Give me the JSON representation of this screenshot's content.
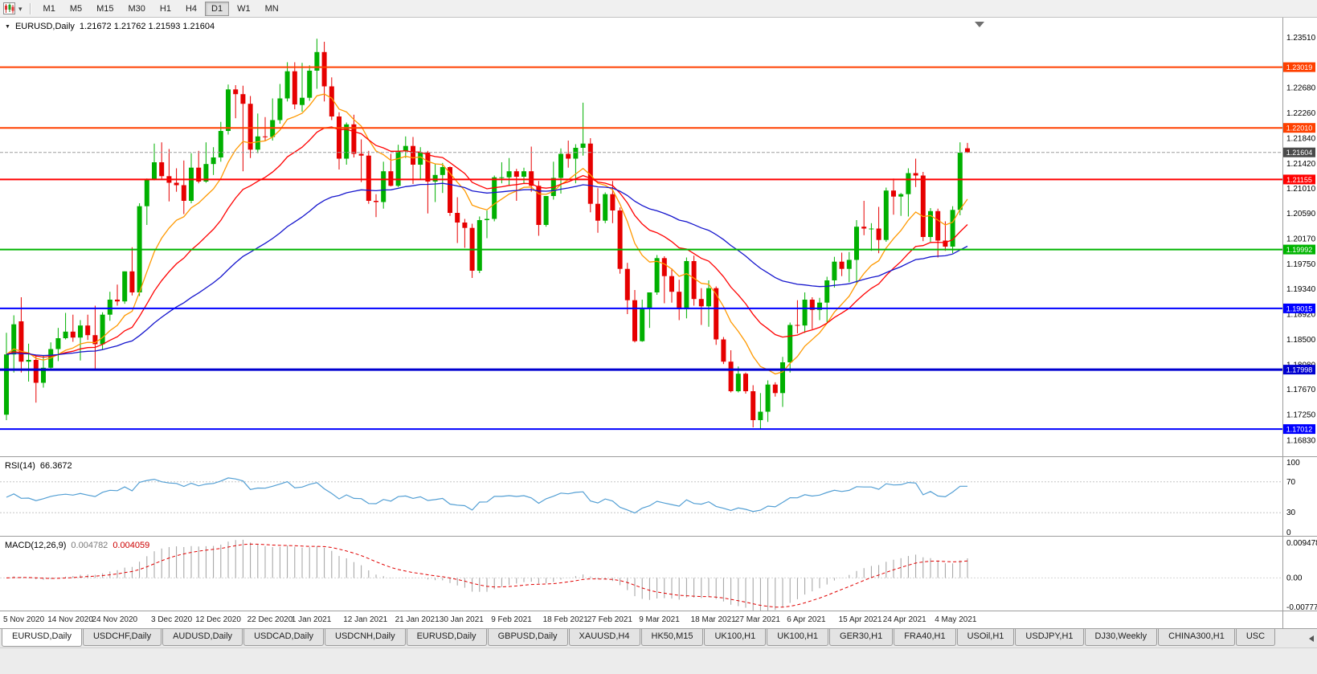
{
  "icons": {
    "symbol_dropdown": "▼",
    "toolbar_caret": "▾"
  },
  "toolbar": {
    "timeframes": [
      {
        "label": "M1",
        "active": false
      },
      {
        "label": "M5",
        "active": false
      },
      {
        "label": "M15",
        "active": false
      },
      {
        "label": "M30",
        "active": false
      },
      {
        "label": "H1",
        "active": false
      },
      {
        "label": "H4",
        "active": false
      },
      {
        "label": "D1",
        "active": true
      },
      {
        "label": "W1",
        "active": false
      },
      {
        "label": "MN",
        "active": false
      }
    ]
  },
  "chart": {
    "symbol_label": "EURUSD,Daily",
    "ohlc_label": "1.21672 1.21762 1.21593 1.21604",
    "rsi_name": "RSI(14)",
    "rsi_value": "66.3672",
    "macd_name": "MACD(12,26,9)",
    "macd_main": "0.004782",
    "macd_signal": "0.004059",
    "current_price": "1.21604"
  },
  "chart_data": {
    "type": "candlestick",
    "symbol": "EURUSD",
    "period": "Daily",
    "style": {
      "bull": "#00b000",
      "bear": "#e60000",
      "background": "#ffffff"
    },
    "price_axis": {
      "min": 1.1656,
      "max": 1.2384,
      "ticks": [
        "1.23510",
        "1.22680",
        "1.22260",
        "1.21840",
        "1.21420",
        "1.21010",
        "1.20590",
        "1.20170",
        "1.19750",
        "1.19340",
        "1.18920",
        "1.18500",
        "1.18080",
        "1.17670",
        "1.17250",
        "1.16830"
      ]
    },
    "x_axis": {
      "labels": [
        {
          "text": "5 Nov 2020",
          "index": 0
        },
        {
          "text": "14 Nov 2020",
          "index": 6
        },
        {
          "text": "24 Nov 2020",
          "index": 12
        },
        {
          "text": "3 Dec 2020",
          "index": 20
        },
        {
          "text": "12 Dec 2020",
          "index": 26
        },
        {
          "text": "22 Dec 2020",
          "index": 33
        },
        {
          "text": "1 Jan 2021",
          "index": 39
        },
        {
          "text": "12 Jan 2021",
          "index": 46
        },
        {
          "text": "21 Jan 2021",
          "index": 53
        },
        {
          "text": "30 Jan 2021",
          "index": 59
        },
        {
          "text": "9 Feb 2021",
          "index": 66
        },
        {
          "text": "18 Feb 2021",
          "index": 73
        },
        {
          "text": "27 Feb 2021",
          "index": 79
        },
        {
          "text": "9 Mar 2021",
          "index": 86
        },
        {
          "text": "18 Mar 2021",
          "index": 93
        },
        {
          "text": "27 Mar 2021",
          "index": 99
        },
        {
          "text": "6 Apr 2021",
          "index": 106
        },
        {
          "text": "15 Apr 2021",
          "index": 113
        },
        {
          "text": "24 Apr 2021",
          "index": 119
        },
        {
          "text": "4 May 2021",
          "index": 126
        }
      ]
    },
    "candles": [
      [
        1.1725,
        1.1861,
        1.1716,
        1.1825
      ],
      [
        1.1825,
        1.189,
        1.1795,
        1.1875
      ],
      [
        1.188,
        1.192,
        1.1795,
        1.1813
      ],
      [
        1.1813,
        1.1843,
        1.178,
        1.1816
      ],
      [
        1.1816,
        1.1823,
        1.1745,
        1.1778
      ],
      [
        1.1778,
        1.1823,
        1.177,
        1.1803
      ],
      [
        1.1803,
        1.1845,
        1.1799,
        1.1834
      ],
      [
        1.1834,
        1.1869,
        1.1814,
        1.1852
      ],
      [
        1.1852,
        1.1894,
        1.185,
        1.1863
      ],
      [
        1.1863,
        1.1891,
        1.1846,
        1.1853
      ],
      [
        1.1853,
        1.1882,
        1.1815,
        1.1873
      ],
      [
        1.1873,
        1.1891,
        1.1849,
        1.1857
      ],
      [
        1.1857,
        1.1906,
        1.18,
        1.1842
      ],
      [
        1.1842,
        1.1895,
        1.1833,
        1.1891
      ],
      [
        1.1891,
        1.1929,
        1.1881,
        1.1916
      ],
      [
        1.1916,
        1.1941,
        1.1906,
        1.1913
      ],
      [
        1.1913,
        1.1963,
        1.1909,
        1.1963
      ],
      [
        1.1963,
        1.2003,
        1.1923,
        1.1928
      ],
      [
        1.1928,
        1.2076,
        1.1922,
        1.2071
      ],
      [
        1.2071,
        1.2117,
        1.204,
        1.2115
      ],
      [
        1.2115,
        1.2175,
        1.2114,
        1.2144
      ],
      [
        1.2144,
        1.2177,
        1.2115,
        1.2121
      ],
      [
        1.2121,
        1.2166,
        1.2079,
        1.211
      ],
      [
        1.211,
        1.2134,
        1.2095,
        1.2106
      ],
      [
        1.2106,
        1.2147,
        1.2058,
        1.208
      ],
      [
        1.208,
        1.2159,
        1.2076,
        1.2135
      ],
      [
        1.2135,
        1.2163,
        1.2109,
        1.2112
      ],
      [
        1.2112,
        1.2177,
        1.211,
        1.2141
      ],
      [
        1.2141,
        1.2169,
        1.2123,
        1.2152
      ],
      [
        1.2152,
        1.2211,
        1.2145,
        1.2196
      ],
      [
        1.2196,
        1.2273,
        1.219,
        1.2265
      ],
      [
        1.2265,
        1.2272,
        1.2217,
        1.2257
      ],
      [
        1.2257,
        1.2271,
        1.2129,
        1.2241
      ],
      [
        1.2241,
        1.2254,
        1.2151,
        1.2165
      ],
      [
        1.2165,
        1.2225,
        1.2159,
        1.2187
      ],
      [
        1.2187,
        1.2219,
        1.218,
        1.2186
      ],
      [
        1.2186,
        1.225,
        1.218,
        1.2214
      ],
      [
        1.2214,
        1.2274,
        1.2208,
        1.225
      ],
      [
        1.225,
        1.231,
        1.2245,
        1.2295
      ],
      [
        1.2295,
        1.231,
        1.2232,
        1.224
      ],
      [
        1.2239,
        1.2309,
        1.2228,
        1.2251
      ],
      [
        1.2251,
        1.2305,
        1.2246,
        1.2296
      ],
      [
        1.2296,
        1.2349,
        1.2266,
        1.2327
      ],
      [
        1.2327,
        1.2344,
        1.2245,
        1.227
      ],
      [
        1.227,
        1.2285,
        1.2214,
        1.222
      ],
      [
        1.222,
        1.2227,
        1.2132,
        1.215
      ],
      [
        1.215,
        1.221,
        1.214,
        1.2207
      ],
      [
        1.2207,
        1.2223,
        1.2152,
        1.2158
      ],
      [
        1.2158,
        1.2182,
        1.2111,
        1.2155
      ],
      [
        1.2155,
        1.2163,
        1.2075,
        1.208
      ],
      [
        1.208,
        1.2091,
        1.2053,
        1.2078
      ],
      [
        1.2078,
        1.2145,
        1.2067,
        1.2129
      ],
      [
        1.2129,
        1.2158,
        1.2104,
        1.2105
      ],
      [
        1.2105,
        1.2173,
        1.2103,
        1.2163
      ],
      [
        1.2163,
        1.2187,
        1.2151,
        1.2171
      ],
      [
        1.2171,
        1.2186,
        1.2108,
        1.214
      ],
      [
        1.214,
        1.2169,
        1.2116,
        1.216
      ],
      [
        1.216,
        1.2163,
        1.2059,
        1.2112
      ],
      [
        1.2112,
        1.2141,
        1.2078,
        1.2123
      ],
      [
        1.2123,
        1.2143,
        1.2093,
        1.2136
      ],
      [
        1.2136,
        1.2137,
        1.2055,
        1.206
      ],
      [
        1.206,
        1.2086,
        1.201,
        1.2044
      ],
      [
        1.2044,
        1.205,
        1.2002,
        1.2035
      ],
      [
        1.2035,
        1.2042,
        1.1952,
        1.1964
      ],
      [
        1.1964,
        1.2054,
        1.196,
        1.2048
      ],
      [
        1.2048,
        1.2064,
        1.2018,
        1.205
      ],
      [
        1.205,
        1.2122,
        1.2046,
        1.2119
      ],
      [
        1.2119,
        1.2144,
        1.2109,
        1.2119
      ],
      [
        1.2119,
        1.2151,
        1.2106,
        1.2129
      ],
      [
        1.2129,
        1.2133,
        1.208,
        1.212
      ],
      [
        1.212,
        1.2135,
        1.2109,
        1.2129
      ],
      [
        1.2129,
        1.217,
        1.2095,
        1.2105
      ],
      [
        1.2105,
        1.2113,
        1.2022,
        1.204
      ],
      [
        1.204,
        1.2088,
        1.2037,
        1.2088
      ],
      [
        1.2088,
        1.2145,
        1.2082,
        1.2118
      ],
      [
        1.2118,
        1.2167,
        1.2092,
        1.2158
      ],
      [
        1.2158,
        1.218,
        1.2135,
        1.215
      ],
      [
        1.215,
        1.2174,
        1.2109,
        1.2168
      ],
      [
        1.2168,
        1.2243,
        1.2155,
        1.2175
      ],
      [
        1.2175,
        1.2184,
        1.2061,
        1.2075
      ],
      [
        1.2075,
        1.2101,
        1.2027,
        1.2047
      ],
      [
        1.2047,
        1.2094,
        1.2043,
        1.2091
      ],
      [
        1.2091,
        1.2113,
        1.2043,
        1.2064
      ],
      [
        1.2064,
        1.2069,
        1.1959,
        1.1967
      ],
      [
        1.1967,
        1.1977,
        1.1892,
        1.1915
      ],
      [
        1.1915,
        1.1932,
        1.1845,
        1.1847
      ],
      [
        1.1847,
        1.1916,
        1.1846,
        1.1901
      ],
      [
        1.1901,
        1.1928,
        1.1869,
        1.1928
      ],
      [
        1.1928,
        1.199,
        1.1924,
        1.1985
      ],
      [
        1.1985,
        1.1988,
        1.191,
        1.1955
      ],
      [
        1.1955,
        1.1968,
        1.1911,
        1.1929
      ],
      [
        1.1929,
        1.1949,
        1.1882,
        1.19
      ],
      [
        1.19,
        1.1986,
        1.1885,
        1.198
      ],
      [
        1.198,
        1.1989,
        1.1906,
        1.1917
      ],
      [
        1.1917,
        1.1935,
        1.1874,
        1.1905
      ],
      [
        1.1905,
        1.1948,
        1.1871,
        1.1935
      ],
      [
        1.1935,
        1.1938,
        1.1841,
        1.185
      ],
      [
        1.185,
        1.1854,
        1.1809,
        1.1813
      ],
      [
        1.1813,
        1.1832,
        1.1762,
        1.1764
      ],
      [
        1.1764,
        1.1805,
        1.1762,
        1.1793
      ],
      [
        1.1793,
        1.1795,
        1.176,
        1.1764
      ],
      [
        1.1764,
        1.1774,
        1.1704,
        1.1716
      ],
      [
        1.1716,
        1.1761,
        1.17,
        1.173
      ],
      [
        1.173,
        1.1782,
        1.1713,
        1.1775
      ],
      [
        1.1775,
        1.1779,
        1.1755,
        1.1761
      ],
      [
        1.1761,
        1.1821,
        1.1738,
        1.1812
      ],
      [
        1.1812,
        1.1878,
        1.1795,
        1.1874
      ],
      [
        1.1874,
        1.1915,
        1.186,
        1.1873
      ],
      [
        1.1873,
        1.1928,
        1.1861,
        1.1916
      ],
      [
        1.1916,
        1.192,
        1.1867,
        1.1899
      ],
      [
        1.1899,
        1.1919,
        1.1882,
        1.1911
      ],
      [
        1.1911,
        1.1954,
        1.1878,
        1.1948
      ],
      [
        1.1948,
        1.1987,
        1.1936,
        1.1979
      ],
      [
        1.1979,
        1.1994,
        1.1955,
        1.1967
      ],
      [
        1.1967,
        1.1995,
        1.1945,
        1.1982
      ],
      [
        1.1982,
        1.2048,
        1.1941,
        1.2037
      ],
      [
        1.2037,
        1.208,
        1.2023,
        1.2034
      ],
      [
        1.2034,
        1.2043,
        1.1997,
        1.2034
      ],
      [
        1.2034,
        1.207,
        1.1993,
        1.2015
      ],
      [
        1.2015,
        1.2102,
        1.2012,
        1.2097
      ],
      [
        1.2097,
        1.2117,
        1.2057,
        1.2087
      ],
      [
        1.2087,
        1.2093,
        1.2055,
        1.2091
      ],
      [
        1.2091,
        1.2134,
        1.2054,
        1.2126
      ],
      [
        1.2126,
        1.215,
        1.2103,
        1.2122
      ],
      [
        1.2122,
        1.2128,
        1.2013,
        1.202
      ],
      [
        1.202,
        1.2068,
        1.2012,
        1.2063
      ],
      [
        1.2063,
        1.2067,
        1.1986,
        1.2014
      ],
      [
        1.2014,
        1.2046,
        1.1997,
        1.2004
      ],
      [
        1.2004,
        1.2071,
        1.1993,
        1.2065
      ],
      [
        1.2065,
        1.2177,
        1.2056,
        1.216
      ],
      [
        1.21672,
        1.21762,
        1.21593,
        1.21604
      ]
    ],
    "overlays": {
      "horizontal_lines": [
        {
          "price": 1.23019,
          "label": "1.23019",
          "color": "#ff4000",
          "width": 2
        },
        {
          "price": 1.2201,
          "label": "1.22010",
          "color": "#ff4000",
          "width": 2
        },
        {
          "price": 1.21155,
          "label": "1.21155",
          "color": "#ff0000",
          "width": 2
        },
        {
          "price": 1.19992,
          "label": "1.19992",
          "color": "#00b400",
          "width": 2
        },
        {
          "price": 1.19015,
          "label": "1.19015",
          "color": "#0000ff",
          "width": 2
        },
        {
          "price": 1.17998,
          "label": "1.17998",
          "color": "#0000d0",
          "width": 3
        },
        {
          "price": 1.17012,
          "label": "1.17012",
          "color": "#0000ff",
          "width": 2
        }
      ],
      "bid_line": {
        "price": 1.21604,
        "label": "1.21604",
        "color": "#9e9e9e",
        "label_bg": "#4a4a4a"
      },
      "moving_averages": [
        {
          "name": "fast",
          "period": 10,
          "color": "#ff9900"
        },
        {
          "name": "medium",
          "period": 21,
          "color": "#ff0000"
        },
        {
          "name": "slow",
          "period": 50,
          "color": "#1515cd"
        }
      ]
    },
    "rsi": {
      "period": 14,
      "current": 66.3672,
      "levels": [
        70,
        30
      ],
      "range": [
        0,
        100
      ],
      "axis_ticks": [
        "100",
        "70",
        "30",
        "0"
      ],
      "color": "#539fd4"
    },
    "macd": {
      "fast": 12,
      "slow": 26,
      "signal": 9,
      "current_main": 0.004782,
      "current_signal": 0.004059,
      "range": [
        -0.007778,
        0.009478
      ],
      "axis_ticks": [
        "0.009478",
        "0.00",
        "-0.007778"
      ],
      "histogram_color": "#a0a0a0",
      "signal_color": "#e00000"
    }
  },
  "tabs": [
    {
      "label": "EURUSD,Daily",
      "active": true
    },
    {
      "label": "USDCHF,Daily",
      "active": false
    },
    {
      "label": "AUDUSD,Daily",
      "active": false
    },
    {
      "label": "USDCAD,Daily",
      "active": false
    },
    {
      "label": "USDCNH,Daily",
      "active": false
    },
    {
      "label": "EURUSD,Daily",
      "active": false
    },
    {
      "label": "GBPUSD,Daily",
      "active": false
    },
    {
      "label": "XAUUSD,H4",
      "active": false
    },
    {
      "label": "HK50,M15",
      "active": false
    },
    {
      "label": "UK100,H1",
      "active": false
    },
    {
      "label": "UK100,H1",
      "active": false
    },
    {
      "label": "GER30,H1",
      "active": false
    },
    {
      "label": "FRA40,H1",
      "active": false
    },
    {
      "label": "USOil,H1",
      "active": false
    },
    {
      "label": "USDJPY,H1",
      "active": false
    },
    {
      "label": "DJ30,Weekly",
      "active": false
    },
    {
      "label": "CHINA300,H1",
      "active": false
    },
    {
      "label": "USC",
      "active": false
    }
  ]
}
